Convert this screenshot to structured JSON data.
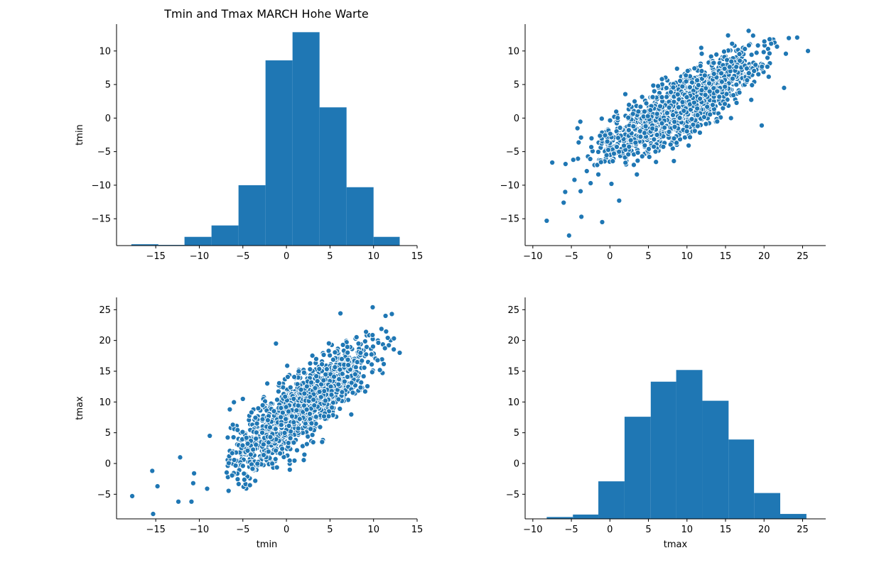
{
  "title": "Tmin and Tmax MARCH Hohe Warte",
  "colors": {
    "marker": "#1f77b4",
    "edge": "#ffffff",
    "axis": "#000000"
  },
  "chart_data": [
    {
      "id": "tmin-hist",
      "type": "bar",
      "position": "top-left",
      "title": "Tmin and Tmax MARCH Hohe Warte",
      "xlabel": "",
      "ylabel": "tmin",
      "xlim": [
        -19.5,
        15
      ],
      "ylim": [
        -19.0,
        14.0
      ],
      "xticks": [
        -15,
        -10,
        -5,
        0,
        5,
        10,
        15
      ],
      "yticks": [
        -15,
        -10,
        -5,
        0,
        5,
        10
      ],
      "bins": [
        {
          "x0": -17.8,
          "x1": -14.7,
          "top": -18.8
        },
        {
          "x0": -14.7,
          "x1": -11.7,
          "top": -18.9
        },
        {
          "x0": -11.7,
          "x1": -8.6,
          "top": -17.7
        },
        {
          "x0": -8.6,
          "x1": -5.5,
          "top": -16.0
        },
        {
          "x0": -5.5,
          "x1": -2.4,
          "top": -10.0
        },
        {
          "x0": -2.4,
          "x1": 0.7,
          "top": 8.6
        },
        {
          "x0": 0.7,
          "x1": 3.8,
          "top": 12.8
        },
        {
          "x0": 3.8,
          "x1": 6.9,
          "top": 1.6
        },
        {
          "x0": 6.9,
          "x1": 10.0,
          "top": -10.3
        },
        {
          "x0": 10.0,
          "x1": 13.0,
          "top": -17.7
        }
      ]
    },
    {
      "id": "tmin-vs-tmax-scatter",
      "type": "scatter",
      "position": "top-right",
      "xlabel": "",
      "ylabel": "",
      "xlim": [
        -11.0,
        28.0
      ],
      "ylim": [
        -19.0,
        14.0
      ],
      "xticks": [
        -10,
        -5,
        0,
        5,
        10,
        15,
        20,
        25
      ],
      "yticks": [
        -15,
        -10,
        -5,
        0,
        5,
        10
      ],
      "x_variable": "tmax",
      "y_variable": "tmin",
      "points": [
        [
          -8.2,
          -15.3
        ],
        [
          -5.3,
          -17.5
        ],
        [
          -3.7,
          -14.7
        ],
        [
          -1.0,
          -15.5
        ],
        [
          1.2,
          -12.3
        ],
        [
          -6.0,
          -12.6
        ],
        [
          -5.8,
          -11.0
        ],
        [
          -4.6,
          -9.2
        ],
        [
          -3.8,
          -10.9
        ],
        [
          -2.5,
          -9.7
        ],
        [
          -3.0,
          -7.9
        ],
        [
          -2.0,
          -7.0
        ],
        [
          -1.5,
          -8.4
        ],
        [
          0.2,
          -9.8
        ],
        [
          -0.5,
          -5.9
        ],
        [
          0.9,
          -4.8
        ],
        [
          2.1,
          -6.9
        ],
        [
          3.5,
          -8.4
        ],
        [
          8.3,
          -6.4
        ],
        [
          19.7,
          -1.1
        ],
        [
          18.0,
          13.0
        ],
        [
          21.2,
          11.7
        ],
        [
          25.7,
          10.0
        ],
        [
          24.3,
          12.0
        ],
        [
          22.6,
          4.5
        ]
      ]
    },
    {
      "id": "tmax-vs-tmin-scatter",
      "type": "scatter",
      "position": "bottom-left",
      "xlabel": "tmin",
      "ylabel": "tmax",
      "xlim": [
        -19.5,
        15
      ],
      "ylim": [
        -9.0,
        27.0
      ],
      "xticks": [
        -15,
        -10,
        -5,
        0,
        5,
        10,
        15
      ],
      "yticks": [
        -5,
        0,
        5,
        10,
        15,
        20,
        25
      ],
      "x_variable": "tmin",
      "y_variable": "tmax",
      "points": [
        [
          -17.7,
          -5.3
        ],
        [
          -15.4,
          -1.2
        ],
        [
          -15.3,
          -8.2
        ],
        [
          -14.8,
          -3.7
        ],
        [
          -12.4,
          -6.2
        ],
        [
          -12.2,
          1.0
        ],
        [
          -10.9,
          -6.2
        ],
        [
          -10.7,
          -3.2
        ],
        [
          -10.6,
          -1.6
        ],
        [
          -9.1,
          -4.1
        ],
        [
          -8.8,
          4.5
        ],
        [
          -6.5,
          8.8
        ],
        [
          -5.0,
          10.5
        ],
        [
          -2.2,
          13.0
        ],
        [
          -1.2,
          19.5
        ],
        [
          9.9,
          25.4
        ],
        [
          12.1,
          24.3
        ],
        [
          13.0,
          18.0
        ],
        [
          10.5,
          20.0
        ],
        [
          6.2,
          24.4
        ]
      ]
    },
    {
      "id": "tmax-hist",
      "type": "bar",
      "position": "bottom-right",
      "xlabel": "tmax",
      "ylabel": "",
      "xlim": [
        -11.0,
        28.0
      ],
      "ylim": [
        -9.0,
        27.0
      ],
      "xticks": [
        -10,
        -5,
        0,
        5,
        10,
        15,
        20,
        25
      ],
      "yticks": [
        -5,
        0,
        5,
        10,
        15,
        20,
        25
      ],
      "bins": [
        {
          "x0": -8.2,
          "x1": -4.8,
          "top": -8.7
        },
        {
          "x0": -4.8,
          "x1": -1.5,
          "top": -8.3
        },
        {
          "x0": -1.5,
          "x1": 1.9,
          "top": -2.9
        },
        {
          "x0": 1.9,
          "x1": 5.3,
          "top": 7.6
        },
        {
          "x0": 5.3,
          "x1": 8.6,
          "top": 13.3
        },
        {
          "x0": 8.6,
          "x1": 12.0,
          "top": 15.2
        },
        {
          "x0": 12.0,
          "x1": 15.4,
          "top": 10.2
        },
        {
          "x0": 15.4,
          "x1": 18.7,
          "top": 3.9
        },
        {
          "x0": 18.7,
          "x1": 22.1,
          "top": -4.8
        },
        {
          "x0": 22.1,
          "x1": 25.5,
          "top": -8.2
        }
      ]
    }
  ]
}
